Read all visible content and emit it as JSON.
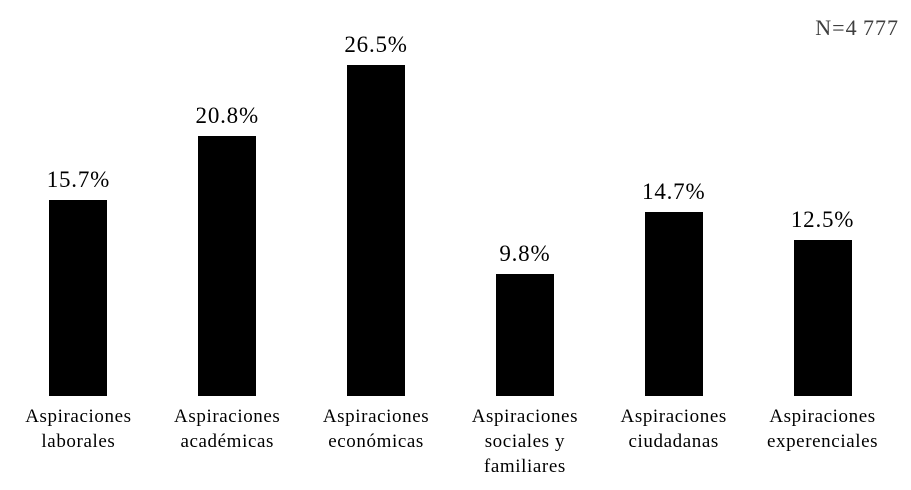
{
  "chart_data": {
    "type": "bar",
    "title": "",
    "categories": [
      "Aspiraciones laborales",
      "Aspiraciones académicas",
      "Aspiraciones económicas",
      "Aspiraciones sociales y familiares",
      "Aspiraciones ciudadanas",
      "Aspiraciones experenciales"
    ],
    "values": [
      15.7,
      20.8,
      26.5,
      9.8,
      14.7,
      12.5
    ],
    "value_labels": [
      "15.7%",
      "20.8%",
      "26.5%",
      "9.8%",
      "14.7%",
      "12.5%"
    ],
    "annotation": "N=4 777",
    "xlabel": "",
    "ylabel": "",
    "ylim": [
      0,
      29.4
    ],
    "grid": false,
    "legend": false,
    "axis_lines": false,
    "bar_color": "#000000",
    "label_color": "#000000",
    "annotation_color": "#3f3f3f",
    "background_color": "#ffffff"
  }
}
